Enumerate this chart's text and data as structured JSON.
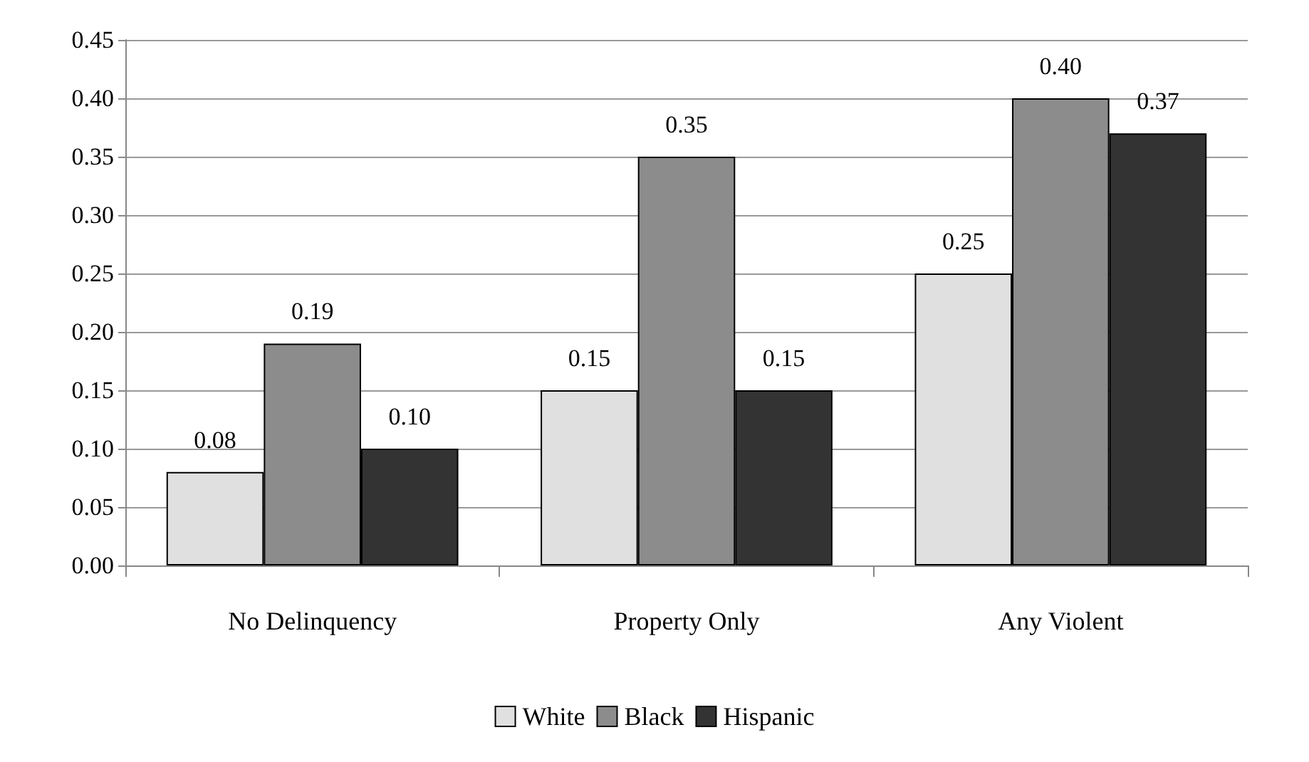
{
  "chart_data": {
    "type": "bar",
    "categories": [
      "No Delinquency",
      "Property Only",
      "Any Violent"
    ],
    "series": [
      {
        "name": "White",
        "color": "#e0e0e0",
        "values": [
          0.08,
          0.15,
          0.25
        ],
        "value_labels": [
          "0.08",
          "0.15",
          "0.25"
        ]
      },
      {
        "name": "Black",
        "color": "#8c8c8c",
        "values": [
          0.19,
          0.35,
          0.4
        ],
        "value_labels": [
          "0.19",
          "0.35",
          "0.40"
        ]
      },
      {
        "name": "Hispanic",
        "color": "#333333",
        "values": [
          0.1,
          0.15,
          0.37
        ],
        "value_labels": [
          "0.10",
          "0.15",
          "0.37"
        ]
      }
    ],
    "ylim": [
      0,
      0.45
    ],
    "yticks": [
      {
        "value": 0,
        "label": "0.00"
      },
      {
        "value": 0.05,
        "label": "0.05"
      },
      {
        "value": 0.1,
        "label": "0.10"
      },
      {
        "value": 0.15,
        "label": "0.15"
      },
      {
        "value": 0.2,
        "label": "0.20"
      },
      {
        "value": 0.25,
        "label": "0.25"
      },
      {
        "value": 0.3,
        "label": "0.30"
      },
      {
        "value": 0.35,
        "label": "0.35"
      },
      {
        "value": 0.4,
        "label": "0.40"
      },
      {
        "value": 0.45,
        "label": "0.45"
      }
    ],
    "grid": "y",
    "legend": "bottom"
  }
}
